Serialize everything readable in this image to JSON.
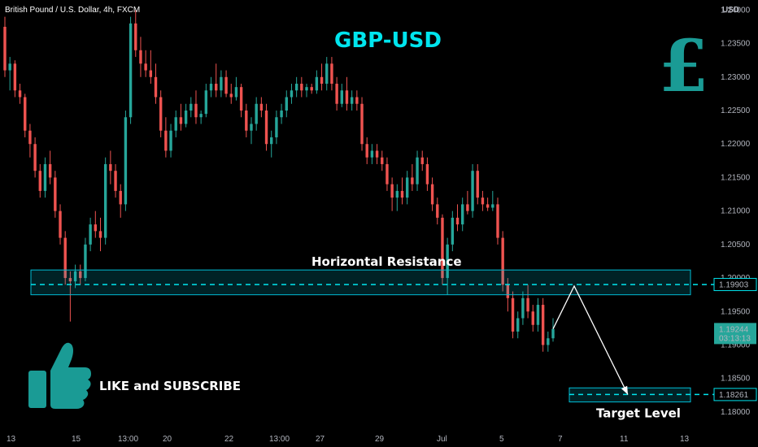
{
  "header": {
    "instrument": "British Pound / U.S. Dollar, 4h, FXCM"
  },
  "chart_data": {
    "type": "candlestick",
    "title": "GBP-USD",
    "currency": "USD",
    "ylim": [
      1.1772,
      1.2415
    ],
    "y_ticks": [
      "1.24000",
      "1.23500",
      "1.23000",
      "1.22500",
      "1.22000",
      "1.21500",
      "1.21000",
      "1.20500",
      "1.20000",
      "1.19500",
      "1.19000",
      "1.18500",
      "1.18000"
    ],
    "x_ticks": [
      "13",
      "15",
      "13:00",
      "20",
      "22",
      "13:00",
      "27",
      "29",
      "Jul",
      "5",
      "7",
      "11",
      "13"
    ],
    "colors": {
      "up": "#26a69a",
      "down": "#ef5350",
      "accent": "#00e5ee",
      "resistance_box": "#00bcd4"
    },
    "candles": [
      [
        1.2375,
        1.239,
        1.23,
        1.231
      ],
      [
        1.231,
        1.233,
        1.228,
        1.232
      ],
      [
        1.232,
        1.2325,
        1.227,
        1.228
      ],
      [
        1.228,
        1.229,
        1.226,
        1.227
      ],
      [
        1.227,
        1.2275,
        1.221,
        1.222
      ],
      [
        1.222,
        1.223,
        1.218,
        1.22
      ],
      [
        1.22,
        1.221,
        1.215,
        1.216
      ],
      [
        1.216,
        1.217,
        1.212,
        1.213
      ],
      [
        1.213,
        1.218,
        1.212,
        1.217
      ],
      [
        1.217,
        1.219,
        1.214,
        1.215
      ],
      [
        1.215,
        1.216,
        1.209,
        1.21
      ],
      [
        1.21,
        1.211,
        1.205,
        1.206
      ],
      [
        1.206,
        1.207,
        1.199,
        1.2
      ],
      [
        1.2,
        1.201,
        1.1935,
        1.1995
      ],
      [
        1.1995,
        1.202,
        1.1985,
        1.201
      ],
      [
        1.201,
        1.202,
        1.199,
        1.2
      ],
      [
        1.2,
        1.206,
        1.1995,
        1.205
      ],
      [
        1.205,
        1.209,
        1.204,
        1.208
      ],
      [
        1.208,
        1.21,
        1.206,
        1.207
      ],
      [
        1.207,
        1.209,
        1.204,
        1.206
      ],
      [
        1.206,
        1.218,
        1.205,
        1.217
      ],
      [
        1.217,
        1.219,
        1.214,
        1.216
      ],
      [
        1.216,
        1.217,
        1.212,
        1.213
      ],
      [
        1.213,
        1.214,
        1.209,
        1.211
      ],
      [
        1.211,
        1.225,
        1.21,
        1.224
      ],
      [
        1.224,
        1.239,
        1.223,
        1.238
      ],
      [
        1.238,
        1.24,
        1.233,
        1.234
      ],
      [
        1.234,
        1.236,
        1.23,
        1.232
      ],
      [
        1.232,
        1.234,
        1.23,
        1.231
      ],
      [
        1.231,
        1.234,
        1.229,
        1.23
      ],
      [
        1.23,
        1.232,
        1.226,
        1.227
      ],
      [
        1.227,
        1.228,
        1.221,
        1.222
      ],
      [
        1.222,
        1.224,
        1.218,
        1.219
      ],
      [
        1.219,
        1.223,
        1.218,
        1.222
      ],
      [
        1.222,
        1.225,
        1.221,
        1.224
      ],
      [
        1.224,
        1.226,
        1.222,
        1.223
      ],
      [
        1.223,
        1.226,
        1.2225,
        1.225
      ],
      [
        1.225,
        1.227,
        1.224,
        1.226
      ],
      [
        1.226,
        1.228,
        1.223,
        1.224
      ],
      [
        1.224,
        1.225,
        1.223,
        1.2245
      ],
      [
        1.2245,
        1.229,
        1.224,
        1.228
      ],
      [
        1.228,
        1.23,
        1.227,
        1.229
      ],
      [
        1.229,
        1.232,
        1.227,
        1.228
      ],
      [
        1.228,
        1.231,
        1.227,
        1.23
      ],
      [
        1.23,
        1.231,
        1.227,
        1.2275
      ],
      [
        1.2275,
        1.229,
        1.226,
        1.227
      ],
      [
        1.227,
        1.23,
        1.2265,
        1.2285
      ],
      [
        1.2285,
        1.229,
        1.224,
        1.225
      ],
      [
        1.225,
        1.226,
        1.221,
        1.222
      ],
      [
        1.222,
        1.224,
        1.22,
        1.223
      ],
      [
        1.223,
        1.227,
        1.222,
        1.226
      ],
      [
        1.226,
        1.227,
        1.224,
        1.225
      ],
      [
        1.225,
        1.226,
        1.219,
        1.22
      ],
      [
        1.22,
        1.222,
        1.218,
        1.221
      ],
      [
        1.221,
        1.225,
        1.22,
        1.224
      ],
      [
        1.224,
        1.226,
        1.223,
        1.225
      ],
      [
        1.225,
        1.228,
        1.224,
        1.227
      ],
      [
        1.227,
        1.229,
        1.226,
        1.228
      ],
      [
        1.228,
        1.23,
        1.227,
        1.229
      ],
      [
        1.229,
        1.23,
        1.227,
        1.228
      ],
      [
        1.228,
        1.229,
        1.227,
        1.2285
      ],
      [
        1.2285,
        1.229,
        1.2275,
        1.228
      ],
      [
        1.228,
        1.231,
        1.2275,
        1.23
      ],
      [
        1.23,
        1.232,
        1.228,
        1.229
      ],
      [
        1.229,
        1.233,
        1.228,
        1.232
      ],
      [
        1.232,
        1.233,
        1.228,
        1.229
      ],
      [
        1.229,
        1.23,
        1.225,
        1.226
      ],
      [
        1.226,
        1.229,
        1.2255,
        1.228
      ],
      [
        1.228,
        1.23,
        1.225,
        1.226
      ],
      [
        1.226,
        1.228,
        1.225,
        1.227
      ],
      [
        1.227,
        1.228,
        1.225,
        1.226
      ],
      [
        1.226,
        1.227,
        1.219,
        1.22
      ],
      [
        1.22,
        1.221,
        1.217,
        1.218
      ],
      [
        1.218,
        1.22,
        1.217,
        1.219
      ],
      [
        1.219,
        1.22,
        1.217,
        1.218
      ],
      [
        1.218,
        1.219,
        1.216,
        1.217
      ],
      [
        1.217,
        1.218,
        1.213,
        1.214
      ],
      [
        1.214,
        1.215,
        1.21,
        1.212
      ],
      [
        1.212,
        1.214,
        1.21,
        1.213
      ],
      [
        1.213,
        1.215,
        1.211,
        1.212
      ],
      [
        1.212,
        1.216,
        1.211,
        1.215
      ],
      [
        1.215,
        1.217,
        1.213,
        1.214
      ],
      [
        1.214,
        1.219,
        1.213,
        1.218
      ],
      [
        1.218,
        1.219,
        1.216,
        1.217
      ],
      [
        1.217,
        1.218,
        1.213,
        1.214
      ],
      [
        1.214,
        1.215,
        1.21,
        1.211
      ],
      [
        1.211,
        1.212,
        1.208,
        1.209
      ],
      [
        1.209,
        1.2095,
        1.199,
        1.2
      ],
      [
        1.2,
        1.206,
        1.1975,
        1.205
      ],
      [
        1.205,
        1.21,
        1.204,
        1.209
      ],
      [
        1.209,
        1.211,
        1.207,
        1.208
      ],
      [
        1.208,
        1.212,
        1.207,
        1.211
      ],
      [
        1.211,
        1.213,
        1.2095,
        1.21
      ],
      [
        1.21,
        1.217,
        1.209,
        1.216
      ],
      [
        1.216,
        1.217,
        1.211,
        1.212
      ],
      [
        1.212,
        1.213,
        1.21,
        1.211
      ],
      [
        1.211,
        1.212,
        1.21,
        1.2105
      ],
      [
        1.2105,
        1.213,
        1.21,
        1.211
      ],
      [
        1.211,
        1.212,
        1.205,
        1.206
      ],
      [
        1.206,
        1.207,
        1.198,
        1.199
      ],
      [
        1.199,
        1.2,
        1.195,
        1.197
      ],
      [
        1.197,
        1.198,
        1.191,
        1.192
      ],
      [
        1.192,
        1.195,
        1.191,
        1.194
      ],
      [
        1.194,
        1.198,
        1.193,
        1.197
      ],
      [
        1.197,
        1.199,
        1.194,
        1.195
      ],
      [
        1.195,
        1.196,
        1.192,
        1.193
      ],
      [
        1.193,
        1.197,
        1.192,
        1.196
      ],
      [
        1.196,
        1.197,
        1.189,
        1.19
      ],
      [
        1.19,
        1.192,
        1.189,
        1.191
      ],
      [
        1.191,
        1.194,
        1.1905,
        1.1924
      ]
    ],
    "annotations": {
      "resistance_label": "Horizontal Resistance",
      "resistance_price": "1.19903",
      "resistance_band": [
        1.1975,
        1.2012
      ],
      "current_price": "1.19244",
      "countdown": "03:13:13",
      "target_label": "Target Level",
      "target_price": "1.18261",
      "target_band": [
        1.1815,
        1.1836
      ],
      "path": [
        [
          1.1924,
          1.1924
        ],
        [
          1.1988,
          1.1988
        ],
        [
          1.1826,
          1.1826
        ]
      ]
    },
    "promo": "LIKE and SUBSCRIBE",
    "logo": "£"
  }
}
